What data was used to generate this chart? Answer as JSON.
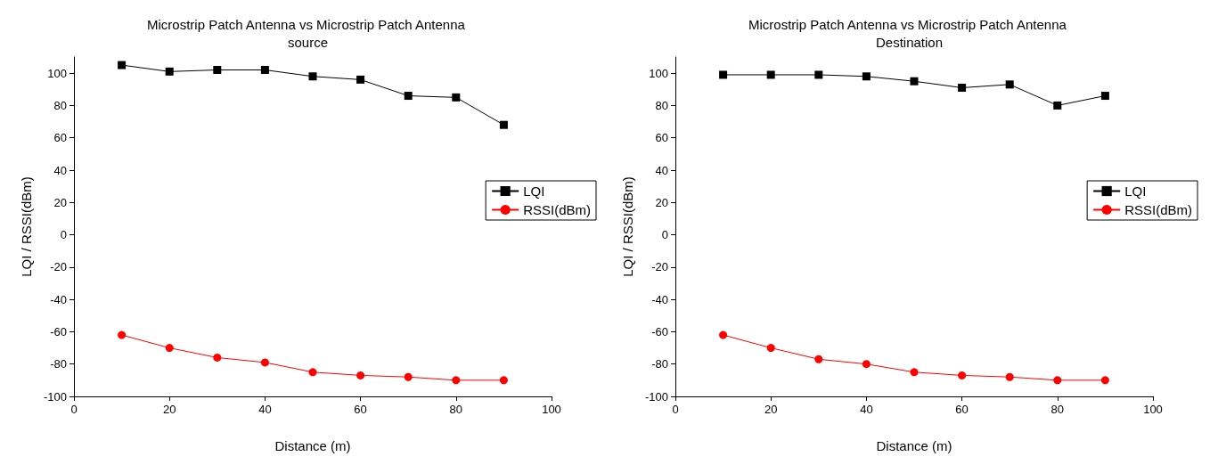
{
  "chart_data": [
    {
      "type": "line",
      "title": "Microstrip Patch Antenna vs Microstrip Patch Antenna source",
      "xlabel": "Distance (m)",
      "ylabel": "LQI / RSSI(dBm)",
      "x": [
        10,
        20,
        30,
        40,
        50,
        60,
        70,
        80,
        90
      ],
      "xlim": [
        0,
        100
      ],
      "xticks": [
        0,
        20,
        40,
        60,
        80,
        100
      ],
      "ylim": [
        -100,
        110
      ],
      "yticks": [
        -100,
        -80,
        -60,
        -40,
        -20,
        0,
        20,
        40,
        60,
        80,
        100
      ],
      "grid": false,
      "legend": "right",
      "series": [
        {
          "name": "LQI",
          "color": "#000000",
          "marker": "square",
          "values": [
            105,
            101,
            102,
            102,
            98,
            96,
            86,
            85,
            68
          ]
        },
        {
          "name": "RSSI(dBm)",
          "color": "#ff0000",
          "marker": "circle",
          "values": [
            -62,
            -70,
            -76,
            -79,
            -85,
            -87,
            -88,
            -90,
            -90
          ]
        }
      ]
    },
    {
      "type": "line",
      "title": "Microstrip Patch Antenna vs Microstrip Patch Antenna Destination",
      "xlabel": "Distance (m)",
      "ylabel": "LQI / RSSI(dBm)",
      "x": [
        10,
        20,
        30,
        40,
        50,
        60,
        70,
        80,
        90
      ],
      "xlim": [
        0,
        100
      ],
      "xticks": [
        0,
        20,
        40,
        60,
        80,
        100
      ],
      "ylim": [
        -100,
        110
      ],
      "yticks": [
        -100,
        -80,
        -60,
        -40,
        -20,
        0,
        20,
        40,
        60,
        80,
        100
      ],
      "grid": false,
      "legend": "right",
      "series": [
        {
          "name": "LQI",
          "color": "#000000",
          "marker": "square",
          "values": [
            99,
            99,
            99,
            98,
            95,
            91,
            93,
            80,
            86
          ]
        },
        {
          "name": "RSSI(dBm)",
          "color": "#ff0000",
          "marker": "circle",
          "values": [
            -62,
            -70,
            -77,
            -80,
            -85,
            -87,
            -88,
            -90,
            -90
          ]
        }
      ]
    }
  ]
}
